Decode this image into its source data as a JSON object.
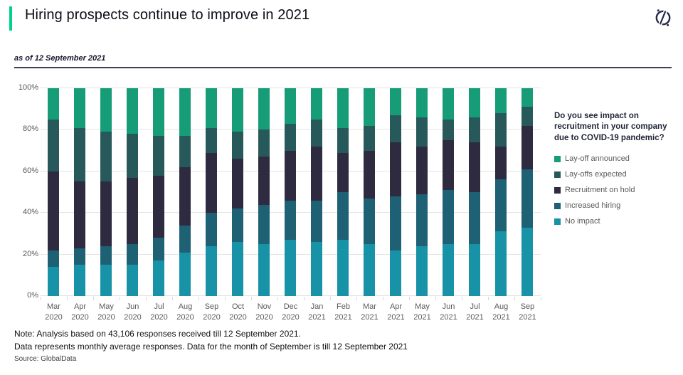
{
  "header": {
    "title": "Hiring prospects continue to improve in 2021",
    "accent_color": "#00d287"
  },
  "subtitle": "as of 12 September 2021",
  "logo": {
    "name": "globaldata-logo",
    "color": "#262a4a"
  },
  "chart_data": {
    "type": "bar",
    "stacked": true,
    "percent_stacked": true,
    "stack_order": "bottom-to-top",
    "categories": [
      "Mar 2020",
      "Apr 2020",
      "May 2020",
      "Jun 2020",
      "Jul 2020",
      "Aug 2020",
      "Sep 2020",
      "Oct 2020",
      "Nov 2020",
      "Dec 2020",
      "Jan 2021",
      "Feb 2021",
      "Mar 2021",
      "Apr 2021",
      "May 2021",
      "Jun 2021",
      "Jul 2021",
      "Aug 2021",
      "Sep 2021"
    ],
    "series": [
      {
        "name": "No impact",
        "color": "#1792a7",
        "values": [
          14,
          15,
          15,
          15,
          17,
          21,
          24,
          26,
          25,
          27,
          26,
          27,
          25,
          22,
          24,
          25,
          25,
          31,
          33
        ]
      },
      {
        "name": "Increased hiring",
        "color": "#1e6074",
        "values": [
          8,
          8,
          9,
          10,
          11,
          13,
          16,
          16,
          19,
          19,
          20,
          23,
          22,
          26,
          25,
          26,
          25,
          25,
          28
        ]
      },
      {
        "name": "Recruitment on hold",
        "color": "#2e2a3f",
        "values": [
          38,
          32,
          31,
          32,
          30,
          28,
          29,
          24,
          23,
          24,
          26,
          19,
          23,
          26,
          23,
          24,
          24,
          16,
          21
        ]
      },
      {
        "name": "Lay-offs expected",
        "color": "#27595a",
        "values": [
          25,
          26,
          24,
          21,
          19,
          15,
          12,
          13,
          13,
          13,
          13,
          12,
          12,
          13,
          14,
          10,
          12,
          16,
          9
        ]
      },
      {
        "name": "Lay-off announced",
        "color": "#169c77",
        "values": [
          15,
          19,
          21,
          22,
          23,
          23,
          19,
          21,
          20,
          17,
          15,
          19,
          18,
          13,
          14,
          15,
          14,
          12,
          9
        ]
      }
    ],
    "title": "Hiring prospects continue to improve in 2021",
    "xlabel": "",
    "ylabel": "",
    "ylim": [
      0,
      100
    ],
    "yticks": [
      "0%",
      "20%",
      "40%",
      "60%",
      "80%",
      "100%"
    ],
    "grid": true,
    "legend_position": "right"
  },
  "legend": {
    "title": "Do you see impact on recruitment in your company due to COVID-19 pandemic?",
    "items": [
      {
        "label": "Lay-off announced",
        "color": "#169c77"
      },
      {
        "label": "Lay-offs expected",
        "color": "#27595a"
      },
      {
        "label": "Recruitment on hold",
        "color": "#2e2a3f"
      },
      {
        "label": "Increased hiring",
        "color": "#1e6074"
      },
      {
        "label": "No impact",
        "color": "#1792a7"
      }
    ]
  },
  "notes": {
    "line1": "Note: Analysis based on 43,106 responses received till 12 September 2021.",
    "line2": "Data represents monthly average responses. Data for the month of September is till 12 September 2021",
    "source": "Source: GlobalData"
  }
}
